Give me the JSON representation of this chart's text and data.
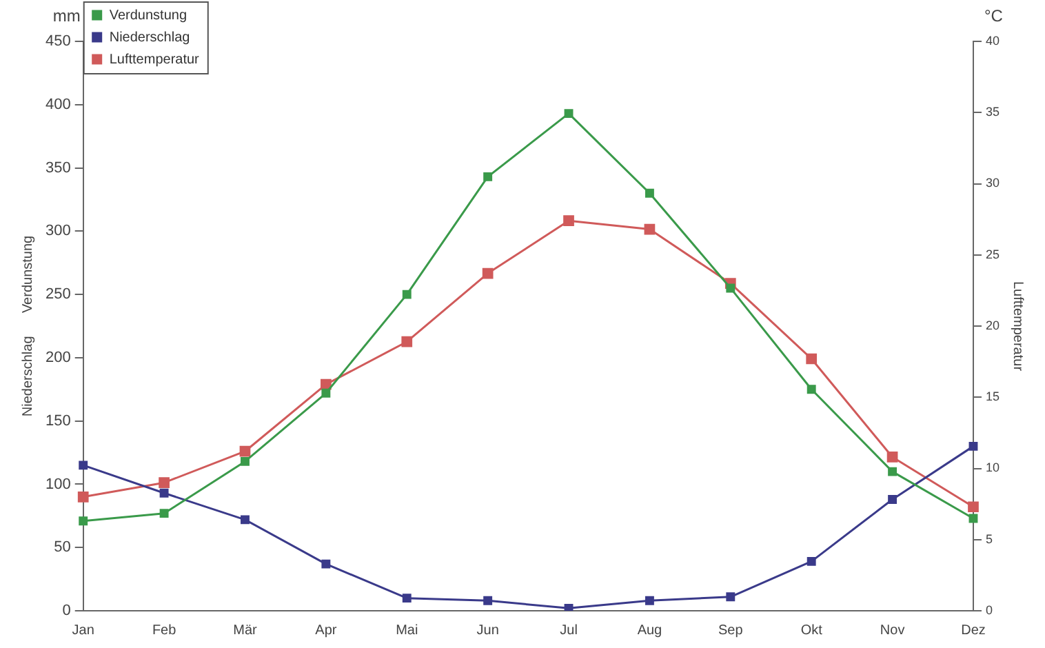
{
  "chart_data": {
    "type": "line",
    "categories": [
      "Jan",
      "Feb",
      "Mär",
      "Apr",
      "Mai",
      "Jun",
      "Jul",
      "Aug",
      "Sep",
      "Okt",
      "Nov",
      "Dez"
    ],
    "series": [
      {
        "name": "Verdunstung",
        "color": "#3a9a4a",
        "values": [
          71,
          77,
          118,
          172,
          250,
          343,
          393,
          330,
          255,
          175,
          110,
          73
        ]
      },
      {
        "name": "Niederschlag",
        "color": "#3a3a8a",
        "values": [
          115,
          93,
          72,
          37,
          10,
          8,
          2,
          8,
          11,
          39,
          88,
          130
        ]
      },
      {
        "name": "Lufttemperatur",
        "color": "#d05a5a",
        "axis": "y2",
        "values": [
          8,
          9,
          11.2,
          15.9,
          18.9,
          23.7,
          27.4,
          26.8,
          23,
          17.7,
          10.8,
          7.3
        ]
      }
    ],
    "ylabel": "Niederschlag      Verdunstung",
    "y2label": "Lufttemperatur",
    "ylim": [
      0,
      450
    ],
    "yticks": [
      0,
      50,
      100,
      150,
      200,
      250,
      300,
      350,
      400,
      450
    ],
    "y2lim": [
      0,
      40
    ],
    "y2ticks": [
      0,
      5,
      10,
      15,
      20,
      25,
      30,
      35,
      40
    ],
    "annotations": [
      "mm",
      "°C"
    ],
    "legend": "top left",
    "marker": "square",
    "line_style": "solid",
    "grid": false
  }
}
